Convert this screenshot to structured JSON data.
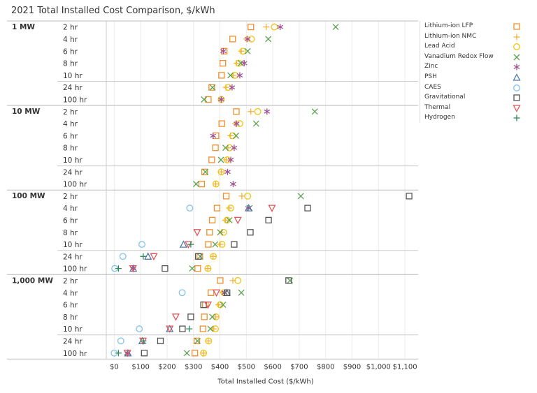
{
  "chart_data": {
    "type": "scatter",
    "title": "2021 Total Installed Cost Comparison, $/kWh",
    "xlabel": "Total Installed Cost ($/kWh)",
    "ylabel": "",
    "xlim": [
      -30,
      1150
    ],
    "x_ticks": [
      0,
      100,
      200,
      300,
      400,
      500,
      600,
      700,
      800,
      900,
      1000,
      1100
    ],
    "x_tick_labels": [
      "$0",
      "$100",
      "$200",
      "$300",
      "$400",
      "$500",
      "$600",
      "$700",
      "$800",
      "$900",
      "$1,000",
      "$1,100"
    ],
    "grid": true,
    "legend_position": "right",
    "technologies": [
      {
        "name": "Lithium-ion LFP",
        "marker": "square",
        "color": "#f28e2b"
      },
      {
        "name": "Lithium-ion NMC",
        "marker": "plus",
        "color": "#f5b041"
      },
      {
        "name": "Lead Acid",
        "marker": "circle",
        "color": "#f1c40f"
      },
      {
        "name": "Vanadium Redox Flow",
        "marker": "x",
        "color": "#59a14f"
      },
      {
        "name": "Zinc",
        "marker": "asterisk",
        "color": "#a05195"
      },
      {
        "name": "PSH",
        "marker": "triangle",
        "color": "#4e79a7"
      },
      {
        "name": "CAES",
        "marker": "circle",
        "color": "#85c1e9"
      },
      {
        "name": "Gravitational",
        "marker": "square",
        "color": "#555555"
      },
      {
        "name": "Thermal",
        "marker": "triangle-down",
        "color": "#e15759"
      },
      {
        "name": "Hydrogen",
        "marker": "plus",
        "color": "#2e8b57"
      }
    ],
    "groups": [
      {
        "power": "1 MW",
        "rows": [
          {
            "duration": "2 hr",
            "values": {
              "Lithium-ion LFP": 517,
              "Lithium-ion NMC": 575,
              "Lead Acid": 606,
              "Vanadium Redox Flow": 838,
              "Zinc": 628
            }
          },
          {
            "duration": "4 hr",
            "values": {
              "Lithium-ion LFP": 448,
              "Lithium-ion NMC": 500,
              "Lead Acid": 519,
              "Vanadium Redox Flow": 583,
              "Zinc": 505
            }
          },
          {
            "duration": "6 hr",
            "values": {
              "Lithium-ion LFP": 416,
              "Lithium-ion NMC": 481,
              "Lead Acid": 487,
              "Vanadium Redox Flow": 505,
              "Zinc": 413
            }
          },
          {
            "duration": "8 hr",
            "values": {
              "Lithium-ion LFP": 411,
              "Lithium-ion NMC": 463,
              "Lead Acid": 471,
              "Vanadium Redox Flow": 479,
              "Zinc": 492
            }
          },
          {
            "duration": "10 hr",
            "values": {
              "Lithium-ion LFP": 406,
              "Lithium-ion NMC": 451,
              "Lead Acid": 457,
              "Vanadium Redox Flow": 440,
              "Zinc": 475
            }
          },
          {
            "duration": "24 hr",
            "values": {
              "Lithium-ion LFP": 369,
              "Lithium-ion NMC": 423,
              "Lead Acid": 431,
              "Vanadium Redox Flow": 372,
              "Zinc": 446
            }
          },
          {
            "duration": "100 hr",
            "values": {
              "Lithium-ion LFP": 356,
              "Lithium-ion NMC": 404,
              "Lead Acid": 405,
              "Vanadium Redox Flow": 340,
              "Zinc": 405
            }
          }
        ]
      },
      {
        "power": "10 MW",
        "rows": [
          {
            "duration": "2 hr",
            "values": {
              "Lithium-ion LFP": 462,
              "Lithium-ion NMC": 517,
              "Lead Acid": 543,
              "Vanadium Redox Flow": 759,
              "Zinc": 578
            }
          },
          {
            "duration": "4 hr",
            "values": {
              "Lithium-ion LFP": 407,
              "Lithium-ion NMC": 458,
              "Lead Acid": 475,
              "Vanadium Redox Flow": 537,
              "Zinc": 463
            }
          },
          {
            "duration": "6 hr",
            "values": {
              "Lithium-ion LFP": 385,
              "Lithium-ion NMC": 440,
              "Lead Acid": 448,
              "Vanadium Redox Flow": 461,
              "Zinc": 374
            }
          },
          {
            "duration": "8 hr",
            "values": {
              "Lithium-ion LFP": 383,
              "Lithium-ion NMC": 430,
              "Lead Acid": 437,
              "Vanadium Redox Flow": 421,
              "Zinc": 454
            }
          },
          {
            "duration": "10 hr",
            "values": {
              "Lithium-ion LFP": 369,
              "Lithium-ion NMC": 424,
              "Lead Acid": 428,
              "Vanadium Redox Flow": 404,
              "Zinc": 441
            }
          },
          {
            "duration": "24 hr",
            "values": {
              "Lithium-ion LFP": 342,
              "Lithium-ion NMC": 405,
              "Lead Acid": 405,
              "Vanadium Redox Flow": 345,
              "Zinc": 429
            }
          },
          {
            "duration": "100 hr",
            "values": {
              "Lithium-ion LFP": 331,
              "Lithium-ion NMC": 384,
              "Lead Acid": 385,
              "Vanadium Redox Flow": 310,
              "Zinc": 450
            }
          }
        ]
      },
      {
        "power": "100 MW",
        "rows": [
          {
            "duration": "2 hr",
            "values": {
              "Lithium-ion LFP": 424,
              "Lithium-ion NMC": 483,
              "Lead Acid": 505,
              "Vanadium Redox Flow": 706,
              "Gravitational": 1116
            }
          },
          {
            "duration": "4 hr",
            "values": {
              "Lithium-ion LFP": 389,
              "Lithium-ion NMC": 435,
              "Lead Acid": 441,
              "Vanadium Redox Flow": 512,
              "Zinc": 507,
              "PSH": 509,
              "CAES": 286,
              "Gravitational": 732,
              "Thermal": 597
            }
          },
          {
            "duration": "6 hr",
            "values": {
              "Lithium-ion LFP": 371,
              "Lithium-ion NMC": 421,
              "Lead Acid": 427,
              "Vanadium Redox Flow": 436,
              "Gravitational": 584,
              "Thermal": 468
            }
          },
          {
            "duration": "8 hr",
            "values": {
              "Lithium-ion LFP": 361,
              "Lithium-ion NMC": 407,
              "Lead Acid": 414,
              "Vanadium Redox Flow": 401,
              "Gravitational": 515,
              "Thermal": 314
            }
          },
          {
            "duration": "10 hr",
            "values": {
              "Lithium-ion LFP": 356,
              "Lithium-ion NMC": 401,
              "Lead Acid": 408,
              "Vanadium Redox Flow": 382,
              "PSH": 262,
              "CAES": 105,
              "Gravitational": 454,
              "Thermal": 281,
              "Hydrogen": 290
            }
          },
          {
            "duration": "24 hr",
            "values": {
              "Lithium-ion LFP": 324,
              "Lithium-ion NMC": 374,
              "Lead Acid": 375,
              "Vanadium Redox Flow": 325,
              "PSH": 128,
              "CAES": 33,
              "Gravitational": 318,
              "Thermal": 150,
              "Hydrogen": 110
            }
          },
          {
            "duration": "100 hr",
            "values": {
              "Lithium-ion LFP": 316,
              "Lithium-ion NMC": 354,
              "Lead Acid": 355,
              "Vanadium Redox Flow": 295,
              "Zinc": 72,
              "PSH": 72,
              "CAES": 2,
              "Gravitational": 192,
              "Thermal": 71,
              "Hydrogen": 16
            }
          }
        ]
      },
      {
        "power": "1,000 MW",
        "rows": [
          {
            "duration": "2 hr",
            "values": {
              "Lithium-ion LFP": 401,
              "Lithium-ion NMC": 449,
              "Lead Acid": 468,
              "Vanadium Redox Flow": 665,
              "Gravitational": 660
            }
          },
          {
            "duration": "4 hr",
            "values": {
              "Lithium-ion LFP": 366,
              "Lithium-ion NMC": 410,
              "Lead Acid": 415,
              "Vanadium Redox Flow": 481,
              "Zinc": 418,
              "PSH": 426,
              "CAES": 257,
              "Gravitational": 427,
              "Thermal": 387
            }
          },
          {
            "duration": "6 hr",
            "values": {
              "Lithium-ion LFP": 345,
              "Lithium-ion NMC": 395,
              "Lead Acid": 401,
              "Vanadium Redox Flow": 412,
              "Gravitational": 338,
              "Thermal": 355
            }
          },
          {
            "duration": "8 hr",
            "values": {
              "Lithium-ion LFP": 341,
              "Lithium-ion NMC": 384,
              "Lead Acid": 385,
              "Vanadium Redox Flow": 371,
              "Gravitational": 290,
              "Thermal": 233
            }
          },
          {
            "duration": "10 hr",
            "values": {
              "Lithium-ion LFP": 336,
              "Lithium-ion NMC": 377,
              "Lead Acid": 383,
              "Vanadium Redox Flow": 364,
              "PSH": 210,
              "CAES": 95,
              "Gravitational": 258,
              "Thermal": 210,
              "Hydrogen": 284
            }
          },
          {
            "duration": "24 hr",
            "values": {
              "Lithium-ion LFP": 313,
              "Lithium-ion NMC": 356,
              "Lead Acid": 357,
              "Vanadium Redox Flow": 315,
              "PSH": 106,
              "CAES": 25,
              "Gravitational": 175,
              "Thermal": 109,
              "Hydrogen": 110
            }
          },
          {
            "duration": "100 hr",
            "values": {
              "Lithium-ion LFP": 305,
              "Lithium-ion NMC": 339,
              "Lead Acid": 338,
              "Vanadium Redox Flow": 275,
              "Zinc": 50,
              "PSH": 52,
              "CAES": 0,
              "Gravitational": 114,
              "Thermal": 50,
              "Hydrogen": 16
            }
          }
        ]
      }
    ]
  }
}
